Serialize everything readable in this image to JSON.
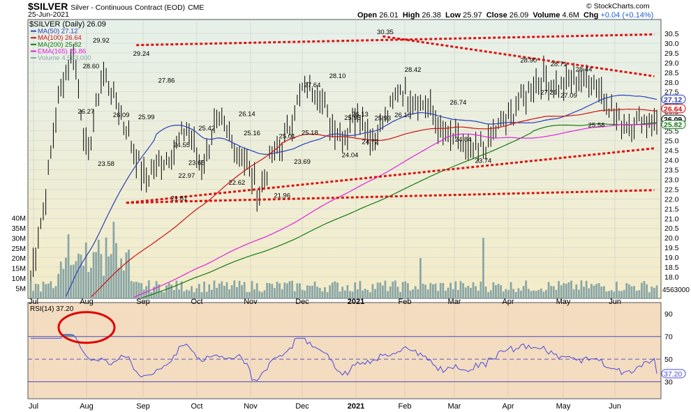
{
  "header": {
    "symbol": "$SILVER",
    "name": "Silver - Continuous Contract (EOD)",
    "exchange": "CME",
    "date": "25-Jun-2021",
    "open_label": "Open",
    "open": "26.01",
    "high_label": "High",
    "high": "26.38",
    "low_label": "Low",
    "low": "25.97",
    "close_label": "Close",
    "close": "26.09",
    "volume_label": "Volume",
    "volume": "4.6M",
    "chg_label": "Chg",
    "chg": "+0.04 (+0.14%)",
    "copyright": "© StockCharts.com"
  },
  "legend": [
    {
      "text": "$SILVER (Daily) 26.09",
      "color": "#000000"
    },
    {
      "text": "MA(50) 27.12",
      "color": "#2a3fb8"
    },
    {
      "text": "MA(100) 26.64",
      "color": "#cc1111"
    },
    {
      "text": "MA(200) 25.82",
      "color": "#137a13"
    },
    {
      "text": "EMA(165) 25.86",
      "color": "#e020e0"
    },
    {
      "text": "Volume 4,563,000",
      "color": "#8aa6a6"
    }
  ],
  "colors": {
    "bg_top": "#e6f0ea",
    "bg_bottom": "#f4ecc8",
    "rsi_bg": "#f3dcc0",
    "price": "#000000",
    "ma50": "#2a3fb8",
    "ma100": "#cc1111",
    "ma200": "#137a13",
    "ema165": "#e020e0",
    "volume": "#8aa6a6",
    "trend": "#dd1111",
    "rsi": "#4a4ae0",
    "rsi_fill": "#5a9a9a"
  },
  "chart_data": [
    {
      "type": "line",
      "title": "$SILVER (Daily) 26.09",
      "x_tick_labels": [
        "Jul",
        "Aug",
        "Sep",
        "Oct",
        "Nov",
        "Dec",
        "2021",
        "Feb",
        "Mar",
        "Apr",
        "May",
        "Jun"
      ],
      "y_ticks": [
        "18.0",
        "18.5",
        "19.0",
        "19.5",
        "20.0",
        "20.5",
        "21.0",
        "21.5",
        "22.0",
        "22.5",
        "23.0",
        "23.5",
        "24.0",
        "24.5",
        "25.0",
        "25.5",
        "26.0",
        "26.5",
        "27.0",
        "27.5",
        "28.0",
        "28.5",
        "29.0",
        "29.5",
        "30.0",
        "30.5"
      ],
      "ylim": [
        17.5,
        31.0
      ],
      "volume_ticks": [
        "5M",
        "10M",
        "15M",
        "20M",
        "25M",
        "30M",
        "35M",
        "40M"
      ],
      "volume_ylim": [
        0,
        45
      ],
      "current_volume_label": "4563000",
      "price_labels": [
        "29.92",
        "28.60",
        "29.24",
        "27.86",
        "26.27",
        "26.09",
        "25.99",
        "23.58",
        "24.55",
        "22.97",
        "21.81",
        "25.42",
        "23.65",
        "26.14",
        "25.16",
        "22.62",
        "21.96",
        "25.01",
        "23.69",
        "25.18",
        "27.64",
        "28.10",
        "25.95",
        "26.13",
        "24.04",
        "24.72",
        "25.93",
        "30.35",
        "28.42",
        "26.10",
        "26.74",
        "24.84",
        "23.74",
        "28.90",
        "28.71",
        "28.44",
        "27.26",
        "27.09",
        "25.58"
      ],
      "right_labels": [
        {
          "text": "27.12",
          "color": "#2a3fb8"
        },
        {
          "text": "26.64",
          "color": "#cc1111"
        },
        {
          "text": "26.09",
          "color": "#000000"
        },
        {
          "text": "25.82",
          "color": "#137a13"
        }
      ],
      "anchors": {
        "x": [
          "Jul",
          "",
          "Aug",
          "",
          "",
          "",
          "Sep",
          "Sep",
          "",
          "",
          "Oct",
          "",
          "",
          "",
          "",
          "Nov",
          "",
          "Dec",
          "",
          "",
          "2021",
          "",
          "",
          "",
          "",
          "Feb",
          "",
          "",
          "",
          "Mar",
          "",
          "",
          "",
          "",
          "Apr",
          "",
          "",
          "",
          "May",
          "",
          "",
          "",
          "",
          "Jun",
          ""
        ],
        "close": [
          18.0,
          22.0,
          27.5,
          29.6,
          24.0,
          28.5,
          27.0,
          25.0,
          23.0,
          23.8,
          24.5,
          25.8,
          23.5,
          26.0,
          25.2,
          24.0,
          22.3,
          24.3,
          25.2,
          27.6,
          27.8,
          26.0,
          25.1,
          26.6,
          25.0,
          26.2,
          27.8,
          27.0,
          26.8,
          25.2,
          25.0,
          24.2,
          24.8,
          25.8,
          26.5,
          27.6,
          28.4,
          27.7,
          28.0,
          28.1,
          27.8,
          26.2,
          25.8,
          26.09,
          26.09
        ]
      }
    },
    {
      "type": "line",
      "title": "RSI(14) 37.20",
      "y_ticks": [
        "30",
        "50",
        "70",
        "90"
      ],
      "ylim": [
        15,
        100
      ],
      "current_label": "37.20"
    }
  ]
}
